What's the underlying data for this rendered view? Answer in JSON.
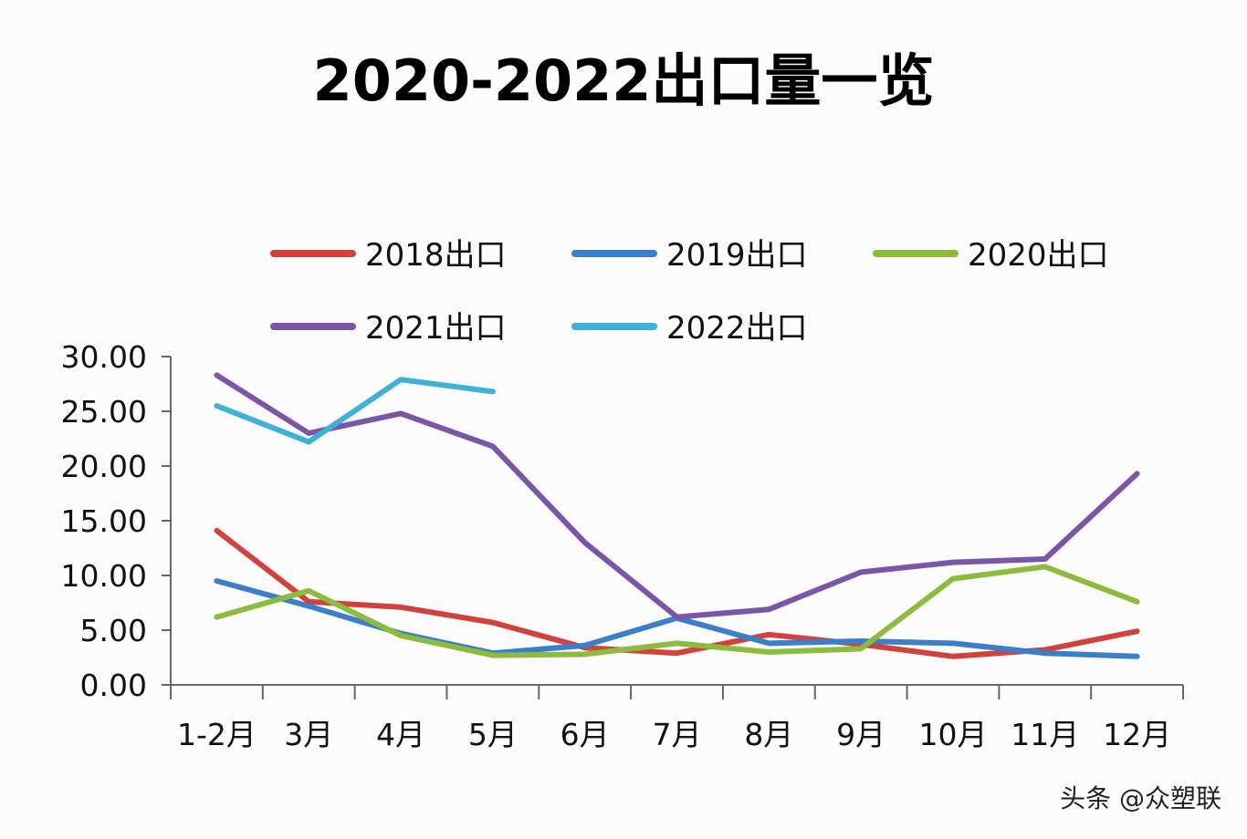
{
  "chart_data": {
    "type": "line",
    "title": "2020-2022出口量一览",
    "xlabel": "",
    "ylabel": "",
    "categories": [
      "1-2月",
      "3月",
      "4月",
      "5月",
      "6月",
      "7月",
      "8月",
      "9月",
      "10月",
      "11月",
      "12月"
    ],
    "ylim": [
      0,
      30
    ],
    "yticks": [
      "0.00",
      "5.00",
      "10.00",
      "15.00",
      "20.00",
      "25.00",
      "30.00"
    ],
    "grid": false,
    "legend_placement": "top",
    "series": [
      {
        "name": "2018出口",
        "color": "#d0423b",
        "values": [
          14.1,
          7.6,
          7.1,
          5.7,
          3.4,
          2.9,
          4.6,
          3.7,
          2.6,
          3.2,
          4.9
        ]
      },
      {
        "name": "2019出口",
        "color": "#3a7fcc",
        "values": [
          9.5,
          7.2,
          4.7,
          2.9,
          3.6,
          6.1,
          3.8,
          4.0,
          3.8,
          2.9,
          2.6
        ]
      },
      {
        "name": "2020出口",
        "color": "#8dbb3e",
        "values": [
          6.2,
          8.6,
          4.5,
          2.7,
          2.8,
          3.8,
          3.0,
          3.3,
          9.7,
          10.8,
          7.6
        ]
      },
      {
        "name": "2021出口",
        "color": "#7b55a8",
        "values": [
          28.3,
          23.0,
          24.8,
          21.8,
          13.0,
          6.2,
          6.9,
          10.3,
          11.2,
          11.5,
          19.3
        ]
      },
      {
        "name": "2022出口",
        "color": "#3fb0d6",
        "values": [
          25.5,
          22.2,
          27.9,
          26.8,
          null,
          null,
          null,
          null,
          null,
          null,
          null
        ]
      }
    ]
  },
  "watermark": "头条 @众塑联"
}
